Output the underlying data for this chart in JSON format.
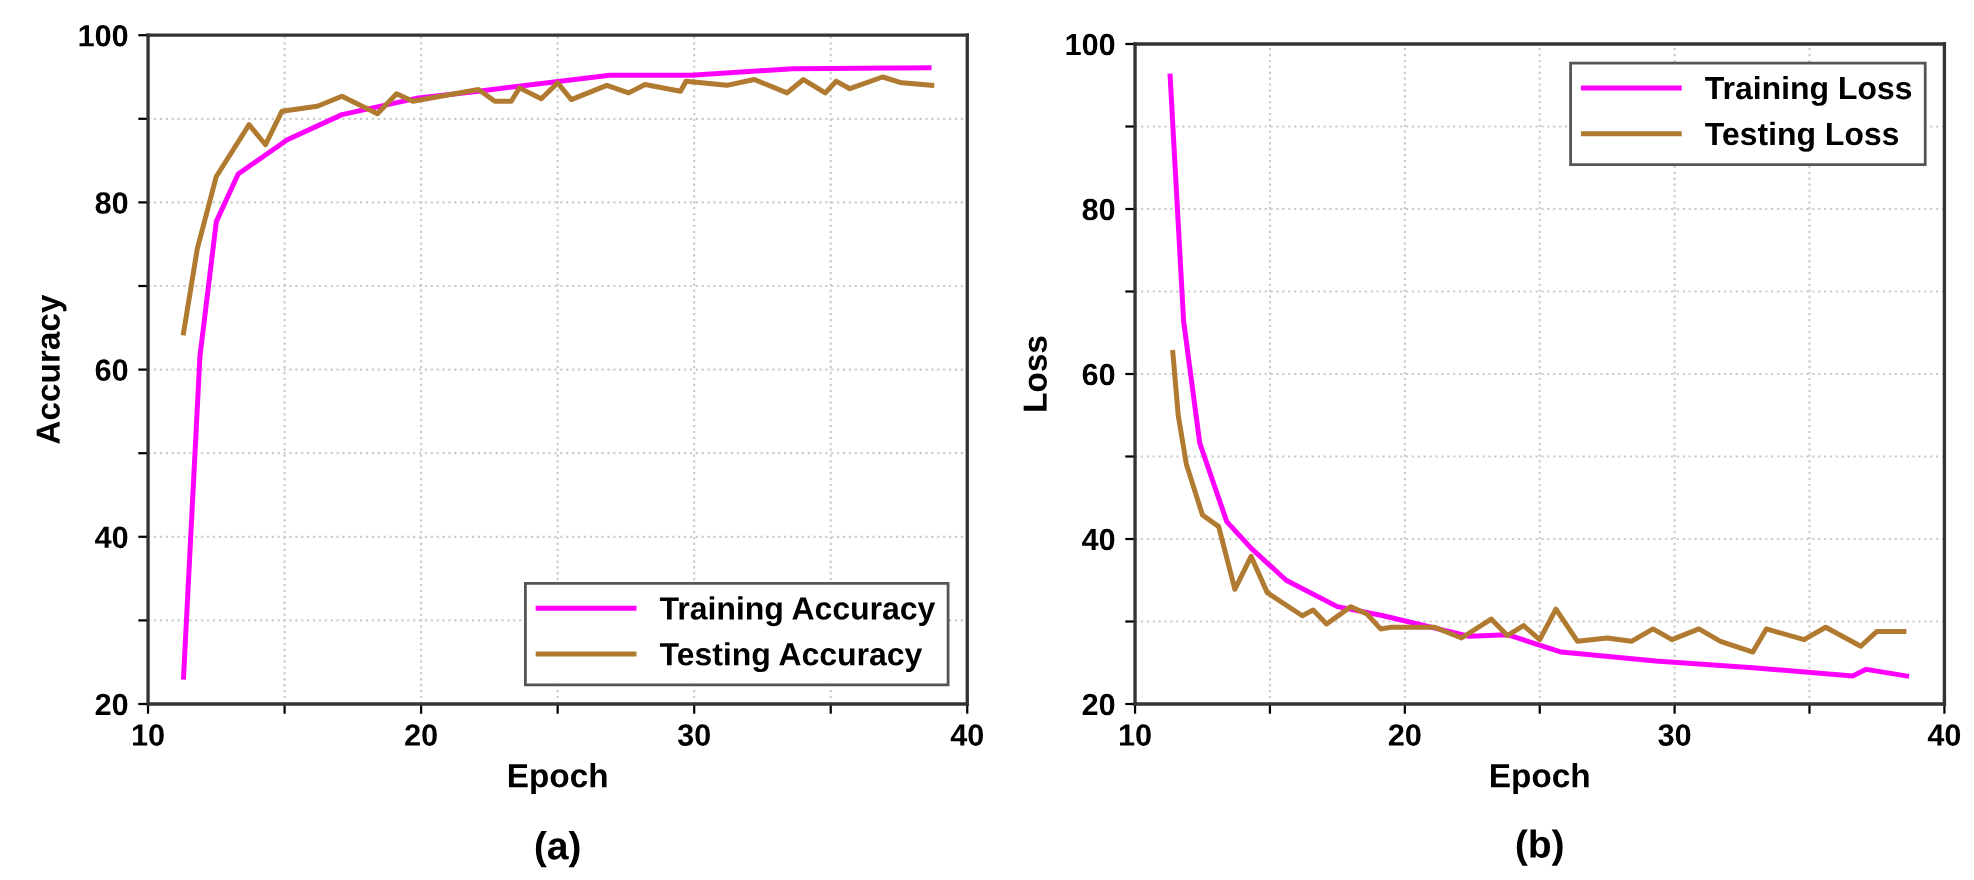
{
  "chart_data": [
    {
      "type": "line",
      "xlabel": "Epoch",
      "ylabel": "Accuracy",
      "annotations": [
        "(a)"
      ],
      "legend": "bottom right",
      "grid": true,
      "line_style": "solid",
      "xlim": [
        10,
        40
      ],
      "ylim": [
        20,
        100
      ],
      "xticks": [
        10,
        {
          "value": 15,
          "label": null
        },
        20,
        {
          "value": 25,
          "label": null
        },
        30,
        {
          "value": 35,
          "label": null
        },
        40
      ],
      "yticks": [
        20,
        {
          "value": 30,
          "label": null
        },
        40,
        {
          "value": 50,
          "label": null
        },
        60,
        {
          "value": 70,
          "label": null
        },
        80,
        {
          "value": 90,
          "label": null
        },
        100
      ],
      "series": [
        {
          "name": "Training Accuracy",
          "color": "#ff00ff",
          "x": [
            11.3,
            11.9,
            12.5,
            13.3,
            15.1,
            17.1,
            19.9,
            22.1,
            25.1,
            26.9,
            29.9,
            33.6,
            38.6
          ],
          "values": [
            23.2,
            61.6,
            77.7,
            83.4,
            87.5,
            90.5,
            92.5,
            93.3,
            94.5,
            95.2,
            95.2,
            96,
            96.1
          ]
        },
        {
          "name": "Testing Accuracy",
          "color": "#b07a30",
          "x": [
            11.3,
            11.8,
            12.5,
            13.7,
            14.3,
            14.9,
            16.2,
            17.1,
            18.4,
            19.1,
            19.7,
            22.1,
            22.7,
            23.3,
            23.6,
            24.4,
            25.0,
            25.5,
            26.8,
            27.6,
            28.2,
            29.5,
            29.7,
            31.2,
            32.2,
            33.4,
            34.0,
            34.8,
            35.2,
            35.7,
            36.9,
            37.6,
            38.7
          ],
          "values": [
            64.4,
            74.4,
            83.1,
            89.3,
            86.9,
            90.9,
            91.5,
            92.7,
            90.6,
            93,
            92.1,
            93.5,
            92.1,
            92.1,
            93.7,
            92.4,
            94.3,
            92.3,
            94,
            93.1,
            94.1,
            93.3,
            94.5,
            94,
            94.7,
            93.1,
            94.7,
            93.1,
            94.5,
            93.6,
            95,
            94.3,
            94
          ]
        }
      ]
    },
    {
      "type": "line",
      "xlabel": "Epoch",
      "ylabel": "Loss",
      "annotations": [
        "(b)"
      ],
      "legend": "top right",
      "grid": true,
      "line_style": "solid",
      "xlim": [
        10,
        40
      ],
      "ylim": [
        20,
        100
      ],
      "xticks": [
        10,
        {
          "value": 15,
          "label": null
        },
        20,
        {
          "value": 25,
          "label": null
        },
        30,
        {
          "value": 35,
          "label": null
        },
        40
      ],
      "yticks": [
        20,
        {
          "value": 30,
          "label": null
        },
        40,
        {
          "value": 50,
          "label": null
        },
        60,
        {
          "value": 70,
          "label": null
        },
        80,
        {
          "value": 90,
          "label": null
        },
        100
      ],
      "series": [
        {
          "name": "Training Loss",
          "color": "#ff00ff",
          "x": [
            11.3,
            11.8,
            12.4,
            13.4,
            14.3,
            15.6,
            17.5,
            19.2,
            22.4,
            23.8,
            25.8,
            29.3,
            32.9,
            36.6,
            37.1,
            38.6
          ],
          "values": [
            96.1,
            66.4,
            51.6,
            42.1,
            38.9,
            35,
            31.8,
            30.7,
            28.2,
            28.4,
            26.3,
            25.2,
            24.4,
            23.4,
            24.2,
            23.4
          ]
        },
        {
          "name": "Testing Loss",
          "color": "#b07a30",
          "x": [
            11.4,
            11.6,
            11.9,
            12.5,
            13.1,
            13.7,
            14.3,
            14.9,
            16.2,
            16.6,
            17.1,
            18.0,
            18.6,
            19.1,
            19.5,
            21.1,
            22.1,
            23.2,
            23.8,
            24.4,
            25.0,
            25.6,
            26.4,
            27.5,
            28.4,
            29.2,
            29.9,
            30.9,
            31.7,
            32.9,
            33.4,
            34.8,
            35.6,
            36.9,
            37.5,
            38.5
          ],
          "values": [
            62.6,
            55,
            49.1,
            42.9,
            41.5,
            33.9,
            37.9,
            33.5,
            30.7,
            31.4,
            29.7,
            31.8,
            30.9,
            29.1,
            29.3,
            29.3,
            28,
            30.3,
            28.3,
            29.5,
            27.8,
            31.5,
            27.6,
            28,
            27.6,
            29.1,
            27.8,
            29.1,
            27.6,
            26.3,
            29.1,
            27.8,
            29.3,
            27,
            28.8,
            28.8
          ]
        }
      ]
    }
  ]
}
